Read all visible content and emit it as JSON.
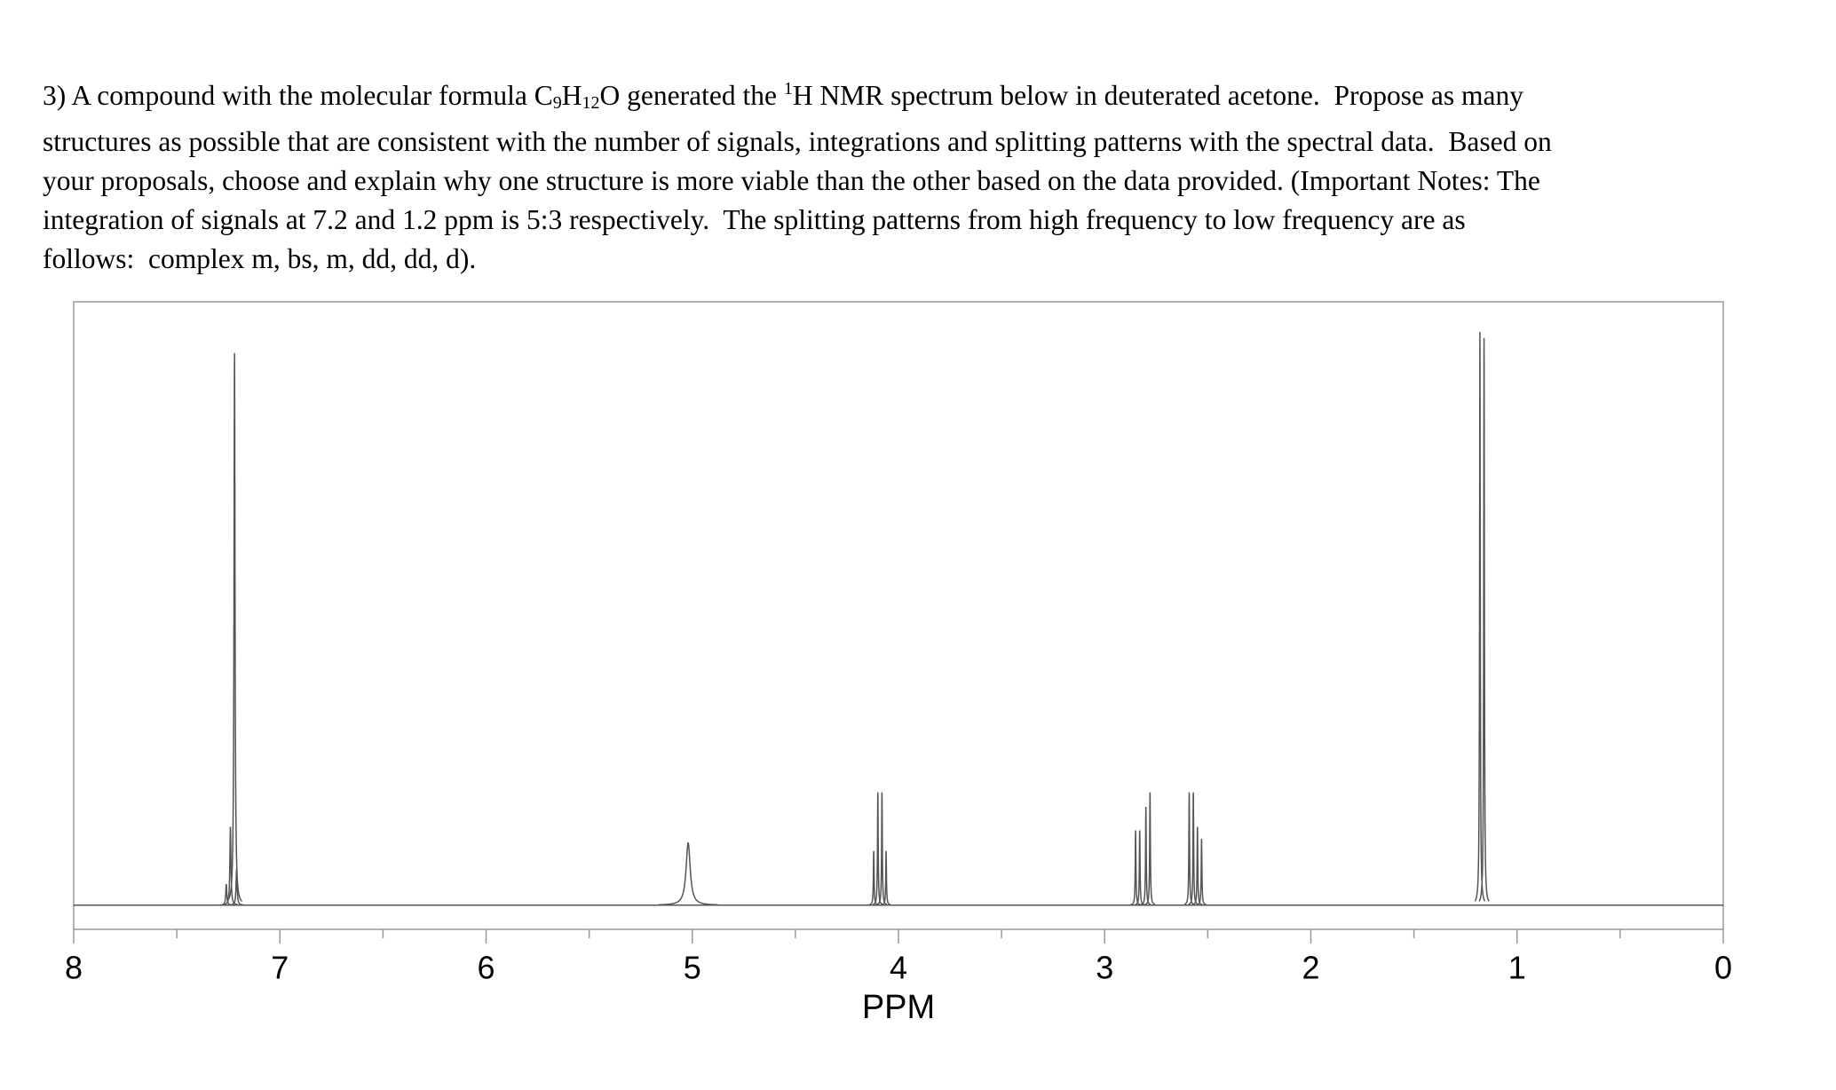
{
  "question": {
    "lines": [
      [
        {
          "text": "3) A compound with the molecular formula C"
        },
        {
          "text": "9",
          "script": "sub"
        },
        {
          "text": "H"
        },
        {
          "text": "12",
          "script": "sub"
        },
        {
          "text": "O generated the "
        },
        {
          "text": "1",
          "script": "sup"
        },
        {
          "text": "H NMR spectrum below in deuterated acetone.  Propose as many"
        }
      ],
      [
        {
          "text": "structures as possible that are consistent with the number of signals, integrations and splitting patterns with the spectral data.  Based on"
        }
      ],
      [
        {
          "text": "your proposals, choose and explain why one structure is more viable than the other based on the data provided. (Important Notes: The"
        }
      ],
      [
        {
          "text": "integration of signals at 7.2 and 1.2 ppm is 5:3 respectively.  The splitting patterns from high frequency to low frequency are as"
        }
      ],
      [
        {
          "text": "follows:  complex m, bs, m, dd, dd, d)."
        }
      ]
    ]
  },
  "chart_data": {
    "type": "nmr",
    "x_label": "PPM",
    "x": [
      7.26,
      7.24,
      7.22,
      7.21,
      5.02,
      4.12,
      4.1,
      4.08,
      4.06,
      2.85,
      2.83,
      2.8,
      2.78,
      2.59,
      2.57,
      2.55,
      2.53,
      1.18,
      1.16
    ],
    "values": [
      3.5,
      13,
      91.5,
      6,
      10.4,
      9,
      18.7,
      18.7,
      9,
      12.4,
      12.4,
      16.3,
      18.7,
      18.7,
      18.7,
      13,
      11,
      95,
      94
    ],
    "widths": [
      0.003,
      0.003,
      0.003,
      0.003,
      0.012,
      0.002,
      0.002,
      0.002,
      0.002,
      0.002,
      0.002,
      0.002,
      0.002,
      0.002,
      0.002,
      0.002,
      0.002,
      0.002,
      0.002
    ],
    "color": "#555555",
    "xlim": [
      8,
      0
    ],
    "ylim": [
      -4,
      100
    ],
    "xticks": [
      8,
      7,
      6,
      5,
      4,
      3,
      2,
      1,
      0
    ],
    "minor_xticks": [
      7.5,
      6.5,
      5.5,
      4.5,
      3.5,
      2.5,
      1.5,
      0.5
    ]
  }
}
